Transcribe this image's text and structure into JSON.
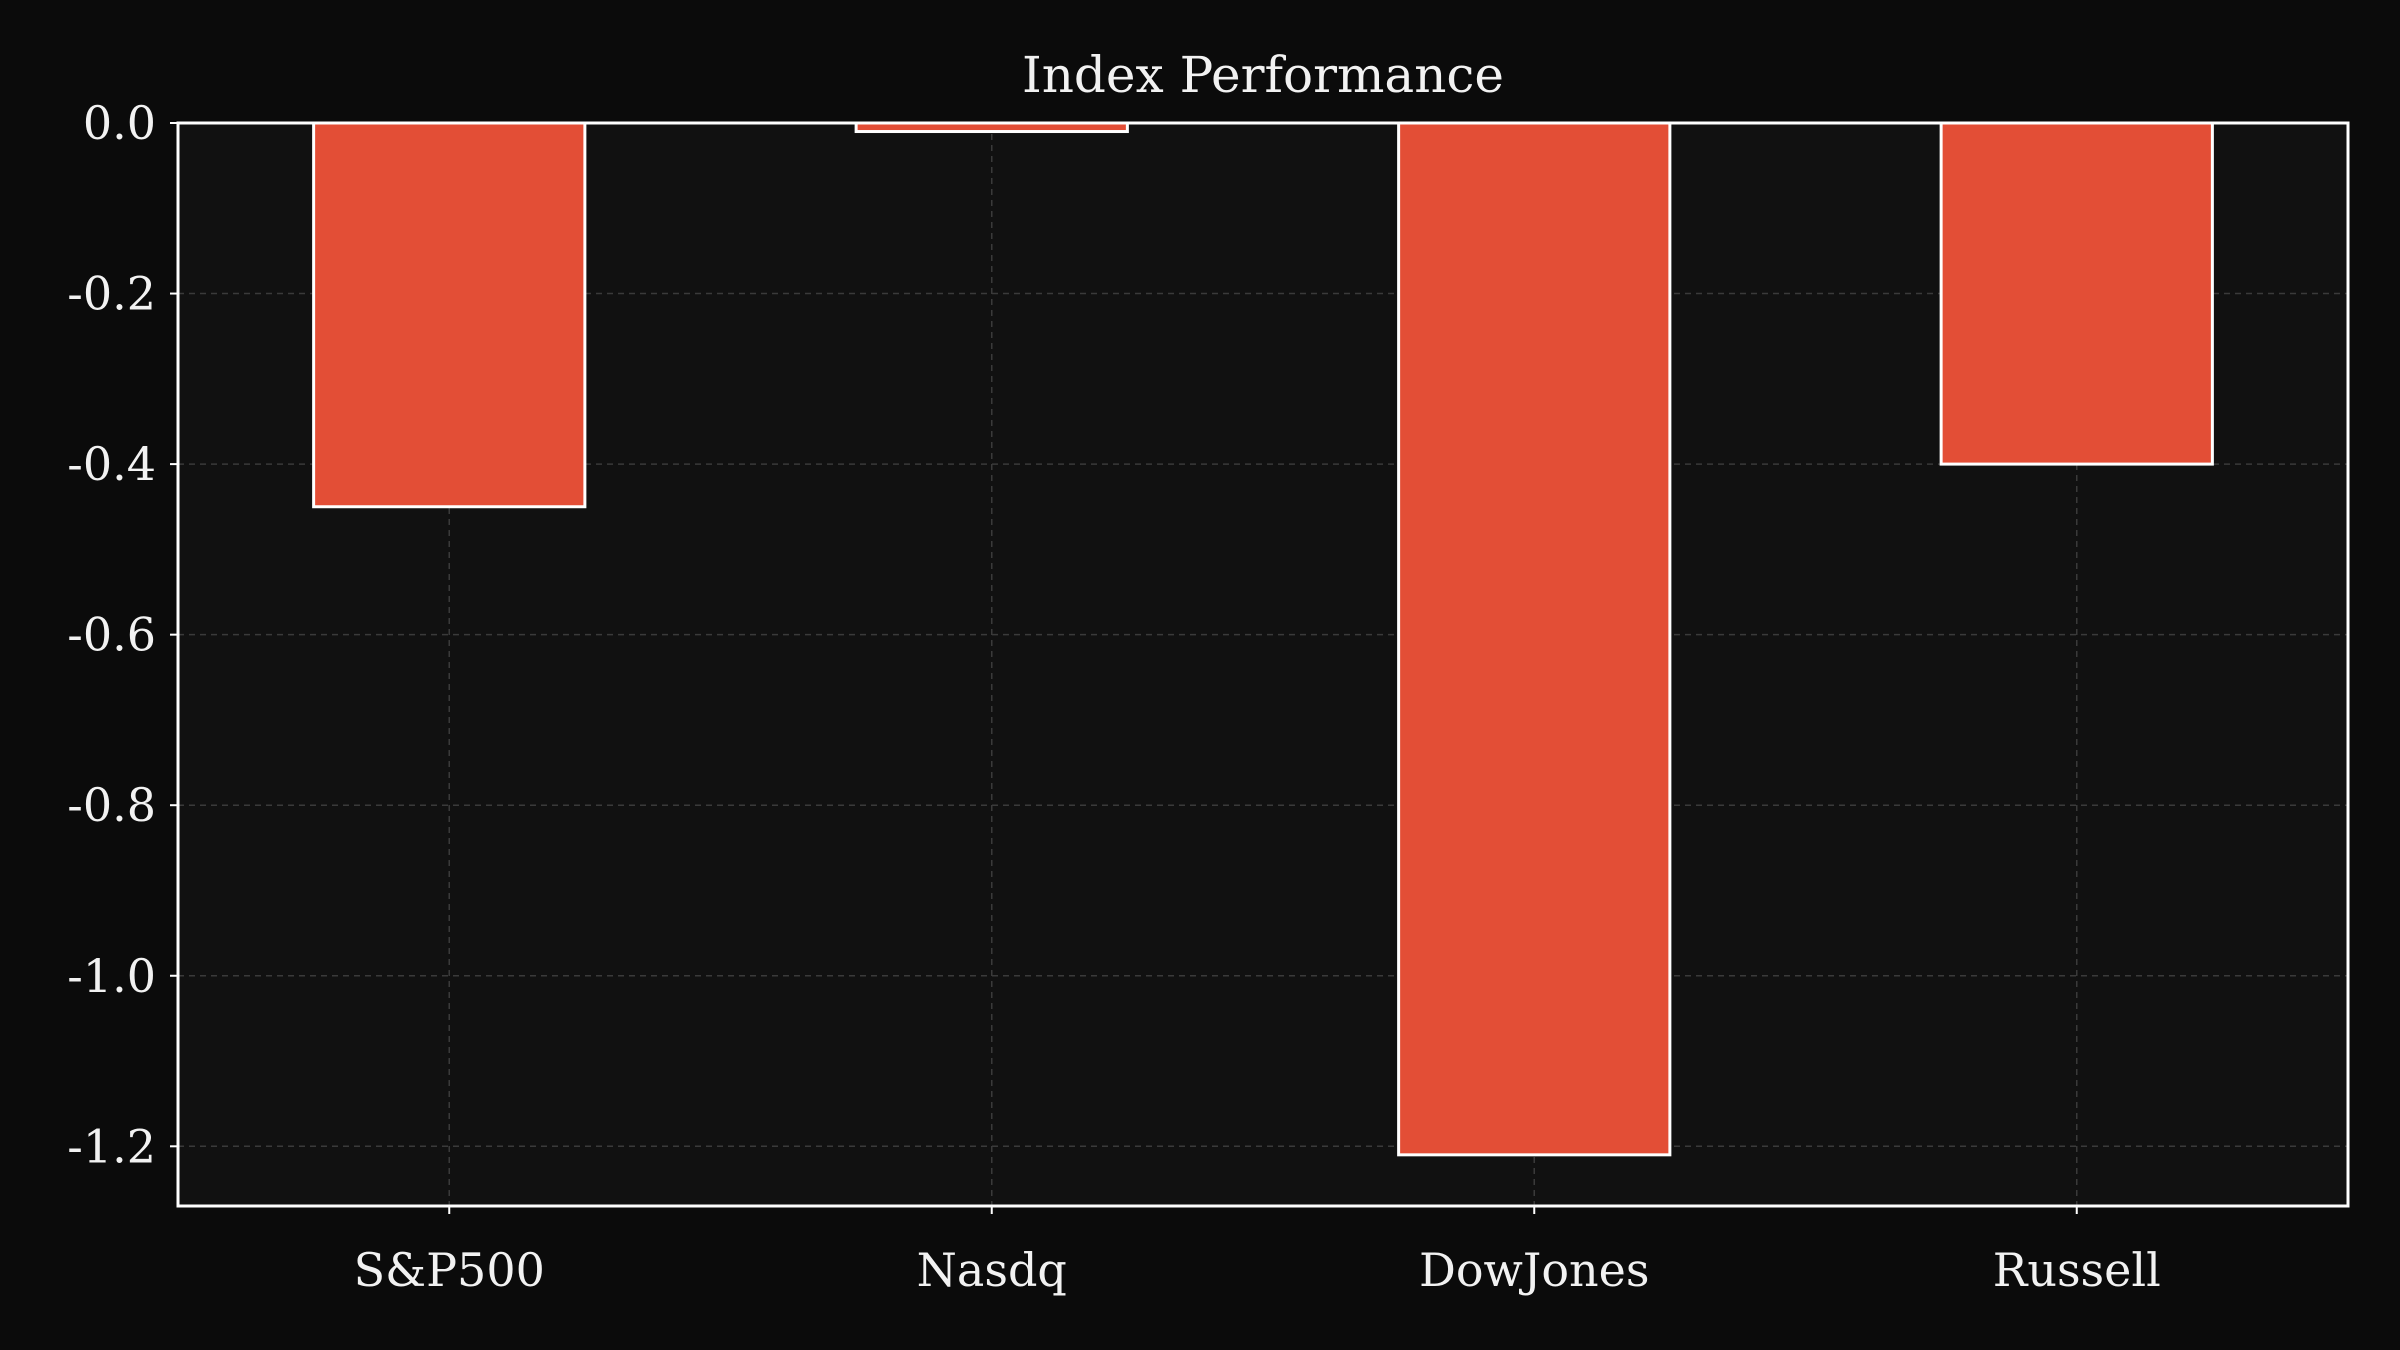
{
  "colors": {
    "page_background": "#0b0b0b",
    "plot_background": "#111111",
    "bar_fill": "#e34e36",
    "bar_edge": "#ffffff",
    "text": "#f2f2f2",
    "axes_frame": "#ffffff",
    "grid": "#3a3a3a"
  },
  "chart_data": {
    "type": "bar",
    "title": "Index Performance",
    "xlabel": "",
    "ylabel": "",
    "categories": [
      "S&P500",
      "Nasdq",
      "DowJones",
      "Russell"
    ],
    "values": [
      -0.45,
      -0.01,
      -1.21,
      -0.4
    ],
    "ylim": [
      -1.27,
      0.0
    ],
    "yticks": [
      0.0,
      -0.2,
      -0.4,
      -0.6,
      -0.8,
      -1.0,
      -1.2
    ],
    "ytick_labels": [
      "0.0",
      "-0.2",
      "-0.4",
      "-0.6",
      "-0.8",
      "-1.0",
      "-1.2"
    ],
    "grid": true,
    "legend": "none"
  }
}
